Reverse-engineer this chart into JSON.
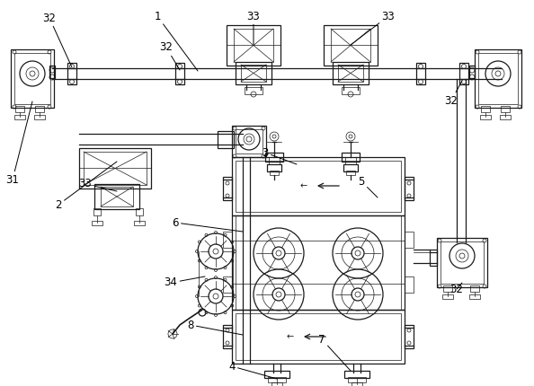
{
  "bg_color": "#ffffff",
  "line_color": "#1a1a1a",
  "lw": 0.9,
  "tlw": 0.5,
  "figsize": [
    5.94,
    4.3
  ],
  "dpi": 100
}
